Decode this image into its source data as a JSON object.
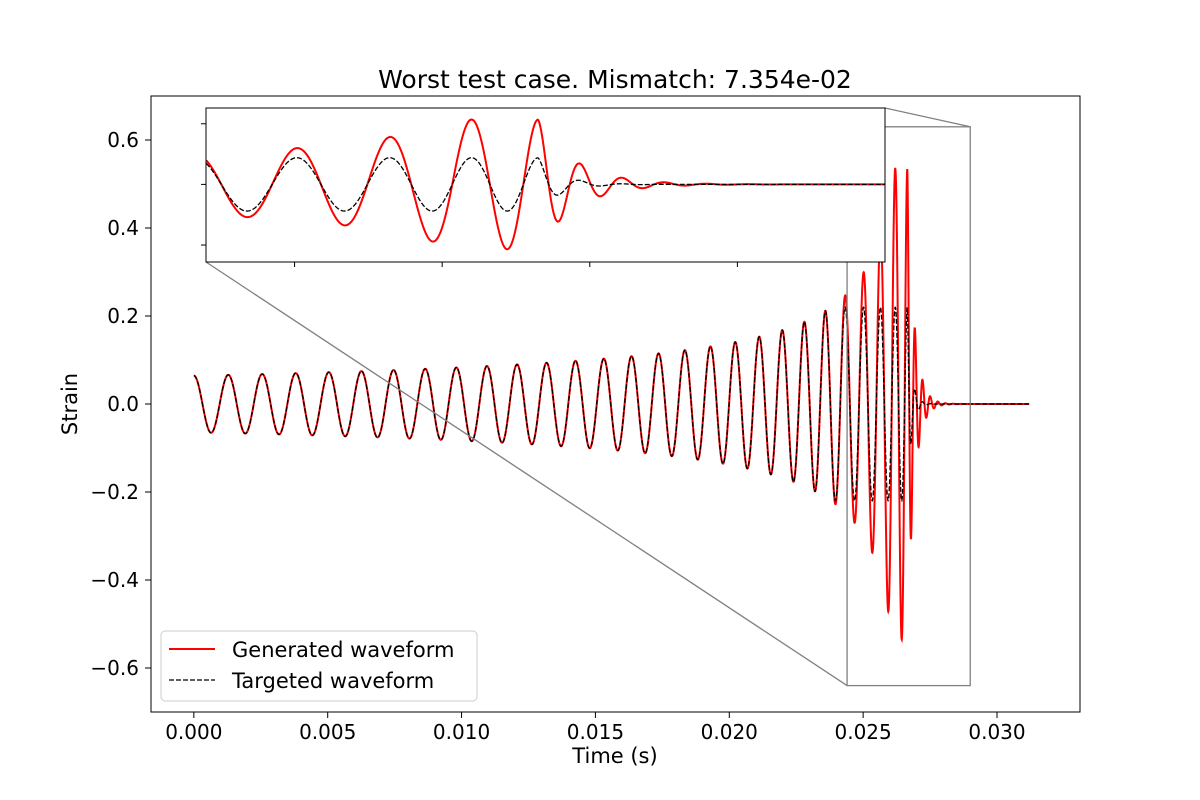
{
  "chart_data": {
    "type": "line",
    "title": "Worst test case. Mismatch: 7.354e-02",
    "xlabel": "Time (s)",
    "ylabel": "Strain",
    "xlim": [
      -0.0016,
      0.0331
    ],
    "ylim": [
      -0.7,
      0.7
    ],
    "xticks": [
      0.0,
      0.005,
      0.01,
      0.015,
      0.02,
      0.025,
      0.03
    ],
    "xtick_labels": [
      "0.000",
      "0.005",
      "0.010",
      "0.015",
      "0.020",
      "0.025",
      "0.030"
    ],
    "yticks": [
      0.6,
      0.4,
      0.2,
      0.0,
      -0.2,
      -0.4,
      -0.6
    ],
    "ytick_labels": [
      "0.6",
      "0.4",
      "0.2",
      "0.0",
      "−0.2",
      "−0.4",
      "−0.6"
    ],
    "grid": false,
    "legend_position": "lower-left",
    "series": [
      {
        "name": "Generated waveform",
        "color": "#ff0000",
        "line_style": "solid",
        "model": {
          "t_start": 0.0,
          "t_merger": 0.02665,
          "t_end": 0.0312,
          "chirp_power": 0.25,
          "peak_amplitude": 0.535,
          "early_amplitude": 0.065,
          "ringdown_tau": 0.00025
        }
      },
      {
        "name": "Targeted waveform",
        "color": "#000000",
        "line_style": "dashed",
        "model": {
          "t_start": 0.0,
          "t_merger": 0.02665,
          "t_end": 0.0312,
          "chirp_power": 0.25,
          "peak_amplitude": 0.22,
          "early_amplitude": 0.065,
          "ringdown_tau": 0.00015
        }
      }
    ],
    "inset": {
      "xlim": [
        0.0244,
        0.029
      ],
      "ylim": [
        -0.64,
        0.63
      ],
      "connector_color": "#808080"
    }
  }
}
